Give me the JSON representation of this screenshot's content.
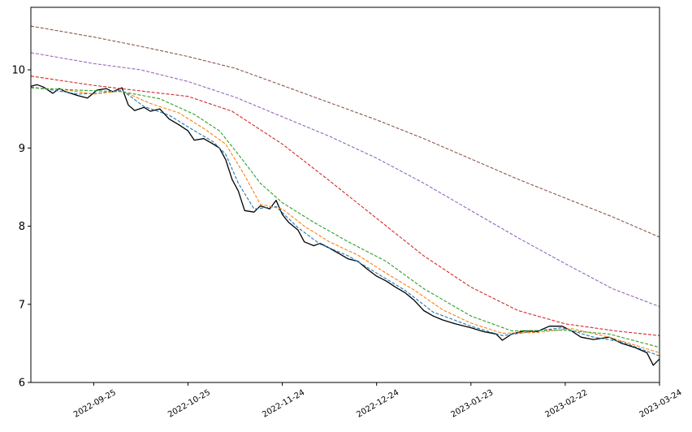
{
  "chart_data": {
    "type": "line",
    "title": "",
    "xlabel": "",
    "ylabel": "",
    "x_range": [
      "2022-09-05",
      "2023-03-24"
    ],
    "ylim": [
      6,
      10.8
    ],
    "grid": false,
    "legend": "none",
    "x_ticks": [
      "2022-09-25",
      "2022-10-25",
      "2022-11-24",
      "2022-12-24",
      "2023-01-23",
      "2023-02-22",
      "2023-03-24"
    ],
    "y_ticks": [
      "6",
      "7",
      "8",
      "9",
      "10"
    ],
    "series": [
      {
        "style": "solid",
        "color": "#000000",
        "points": [
          [
            "2022-09-05",
            9.79
          ],
          [
            "2022-09-07",
            9.81
          ],
          [
            "2022-09-09",
            9.78
          ],
          [
            "2022-09-12",
            9.7
          ],
          [
            "2022-09-14",
            9.76
          ],
          [
            "2022-09-16",
            9.72
          ],
          [
            "2022-09-20",
            9.67
          ],
          [
            "2022-09-23",
            9.64
          ],
          [
            "2022-09-26",
            9.74
          ],
          [
            "2022-09-29",
            9.76
          ],
          [
            "2022-10-01",
            9.72
          ],
          [
            "2022-10-04",
            9.77
          ],
          [
            "2022-10-06",
            9.55
          ],
          [
            "2022-10-08",
            9.48
          ],
          [
            "2022-10-11",
            9.52
          ],
          [
            "2022-10-13",
            9.47
          ],
          [
            "2022-10-16",
            9.5
          ],
          [
            "2022-10-19",
            9.37
          ],
          [
            "2022-10-22",
            9.3
          ],
          [
            "2022-10-25",
            9.22
          ],
          [
            "2022-10-27",
            9.1
          ],
          [
            "2022-10-30",
            9.12
          ],
          [
            "2022-11-02",
            9.05
          ],
          [
            "2022-11-04",
            9.0
          ],
          [
            "2022-11-06",
            8.85
          ],
          [
            "2022-11-08",
            8.6
          ],
          [
            "2022-11-10",
            8.45
          ],
          [
            "2022-11-12",
            8.2
          ],
          [
            "2022-11-15",
            8.18
          ],
          [
            "2022-11-17",
            8.26
          ],
          [
            "2022-11-20",
            8.22
          ],
          [
            "2022-11-22",
            8.33
          ],
          [
            "2022-11-24",
            8.15
          ],
          [
            "2022-11-26",
            8.05
          ],
          [
            "2022-11-29",
            7.95
          ],
          [
            "2022-12-01",
            7.8
          ],
          [
            "2022-12-04",
            7.75
          ],
          [
            "2022-12-06",
            7.78
          ],
          [
            "2022-12-09",
            7.72
          ],
          [
            "2022-12-12",
            7.65
          ],
          [
            "2022-12-15",
            7.58
          ],
          [
            "2022-12-18",
            7.55
          ],
          [
            "2022-12-21",
            7.45
          ],
          [
            "2022-12-24",
            7.36
          ],
          [
            "2022-12-27",
            7.3
          ],
          [
            "2022-12-30",
            7.22
          ],
          [
            "2023-01-02",
            7.15
          ],
          [
            "2023-01-05",
            7.05
          ],
          [
            "2023-01-08",
            6.92
          ],
          [
            "2023-01-11",
            6.85
          ],
          [
            "2023-01-14",
            6.8
          ],
          [
            "2023-01-18",
            6.75
          ],
          [
            "2023-01-23",
            6.7
          ],
          [
            "2023-01-27",
            6.65
          ],
          [
            "2023-01-31",
            6.62
          ],
          [
            "2023-02-02",
            6.54
          ],
          [
            "2023-02-05",
            6.62
          ],
          [
            "2023-02-09",
            6.66
          ],
          [
            "2023-02-13",
            6.65
          ],
          [
            "2023-02-17",
            6.72
          ],
          [
            "2023-02-21",
            6.72
          ],
          [
            "2023-02-24",
            6.66
          ],
          [
            "2023-02-27",
            6.58
          ],
          [
            "2023-03-03",
            6.55
          ],
          [
            "2023-03-08",
            6.58
          ],
          [
            "2023-03-12",
            6.5
          ],
          [
            "2023-03-16",
            6.45
          ],
          [
            "2023-03-20",
            6.38
          ],
          [
            "2023-03-22",
            6.22
          ],
          [
            "2023-03-24",
            6.3
          ]
        ]
      },
      {
        "style": "dashed",
        "color": "#1f77b4",
        "points": [
          [
            "2022-09-05",
            9.78
          ],
          [
            "2022-09-12",
            9.74
          ],
          [
            "2022-09-20",
            9.69
          ],
          [
            "2022-09-26",
            9.7
          ],
          [
            "2022-10-04",
            9.74
          ],
          [
            "2022-10-11",
            9.53
          ],
          [
            "2022-10-19",
            9.42
          ],
          [
            "2022-10-25",
            9.27
          ],
          [
            "2022-11-02",
            9.08
          ],
          [
            "2022-11-06",
            8.92
          ],
          [
            "2022-11-10",
            8.55
          ],
          [
            "2022-11-15",
            8.22
          ],
          [
            "2022-11-22",
            8.25
          ],
          [
            "2022-11-29",
            7.98
          ],
          [
            "2022-12-06",
            7.77
          ],
          [
            "2022-12-15",
            7.62
          ],
          [
            "2022-12-24",
            7.4
          ],
          [
            "2023-01-02",
            7.18
          ],
          [
            "2023-01-11",
            6.9
          ],
          [
            "2023-01-23",
            6.72
          ],
          [
            "2023-02-02",
            6.6
          ],
          [
            "2023-02-13",
            6.66
          ],
          [
            "2023-02-21",
            6.7
          ],
          [
            "2023-03-03",
            6.58
          ],
          [
            "2023-03-12",
            6.52
          ],
          [
            "2023-03-24",
            6.34
          ]
        ]
      },
      {
        "style": "dashed",
        "color": "#ff7f0e",
        "points": [
          [
            "2022-09-05",
            9.77
          ],
          [
            "2022-09-15",
            9.75
          ],
          [
            "2022-09-25",
            9.69
          ],
          [
            "2022-10-04",
            9.73
          ],
          [
            "2022-10-13",
            9.57
          ],
          [
            "2022-10-22",
            9.45
          ],
          [
            "2022-10-30",
            9.25
          ],
          [
            "2022-11-06",
            9.05
          ],
          [
            "2022-11-12",
            8.65
          ],
          [
            "2022-11-17",
            8.28
          ],
          [
            "2022-11-24",
            8.22
          ],
          [
            "2022-12-01",
            8.0
          ],
          [
            "2022-12-09",
            7.8
          ],
          [
            "2022-12-18",
            7.63
          ],
          [
            "2022-12-27",
            7.4
          ],
          [
            "2023-01-05",
            7.18
          ],
          [
            "2023-01-14",
            6.93
          ],
          [
            "2023-01-23",
            6.76
          ],
          [
            "2023-02-02",
            6.63
          ],
          [
            "2023-02-13",
            6.64
          ],
          [
            "2023-02-24",
            6.69
          ],
          [
            "2023-03-08",
            6.58
          ],
          [
            "2023-03-24",
            6.38
          ]
        ]
      },
      {
        "style": "dashed",
        "color": "#2ca02c",
        "points": [
          [
            "2022-09-05",
            9.77
          ],
          [
            "2022-09-20",
            9.74
          ],
          [
            "2022-10-04",
            9.72
          ],
          [
            "2022-10-16",
            9.63
          ],
          [
            "2022-10-27",
            9.43
          ],
          [
            "2022-11-04",
            9.22
          ],
          [
            "2022-11-10",
            8.92
          ],
          [
            "2022-11-17",
            8.55
          ],
          [
            "2022-11-24",
            8.3
          ],
          [
            "2022-12-04",
            8.05
          ],
          [
            "2022-12-15",
            7.8
          ],
          [
            "2022-12-27",
            7.55
          ],
          [
            "2023-01-08",
            7.2
          ],
          [
            "2023-01-23",
            6.85
          ],
          [
            "2023-02-05",
            6.66
          ],
          [
            "2023-02-21",
            6.67
          ],
          [
            "2023-03-08",
            6.62
          ],
          [
            "2023-03-24",
            6.45
          ]
        ]
      },
      {
        "style": "dashed",
        "color": "#d62728",
        "points": [
          [
            "2022-09-05",
            9.92
          ],
          [
            "2022-09-25",
            9.8
          ],
          [
            "2022-10-10",
            9.73
          ],
          [
            "2022-10-25",
            9.66
          ],
          [
            "2022-11-08",
            9.47
          ],
          [
            "2022-11-24",
            9.05
          ],
          [
            "2022-12-10",
            8.55
          ],
          [
            "2022-12-24",
            8.1
          ],
          [
            "2023-01-08",
            7.62
          ],
          [
            "2023-01-23",
            7.22
          ],
          [
            "2023-02-07",
            6.92
          ],
          [
            "2023-02-22",
            6.75
          ],
          [
            "2023-03-10",
            6.66
          ],
          [
            "2023-03-24",
            6.6
          ]
        ]
      },
      {
        "style": "dashed",
        "color": "#9467bd",
        "points": [
          [
            "2022-09-05",
            10.22
          ],
          [
            "2022-09-25",
            10.08
          ],
          [
            "2022-10-10",
            10.0
          ],
          [
            "2022-10-25",
            9.85
          ],
          [
            "2022-11-09",
            9.65
          ],
          [
            "2022-11-24",
            9.4
          ],
          [
            "2022-12-09",
            9.15
          ],
          [
            "2022-12-24",
            8.87
          ],
          [
            "2023-01-08",
            8.55
          ],
          [
            "2023-01-23",
            8.2
          ],
          [
            "2023-02-07",
            7.85
          ],
          [
            "2023-02-22",
            7.52
          ],
          [
            "2023-03-09",
            7.2
          ],
          [
            "2023-03-24",
            6.97
          ]
        ]
      },
      {
        "style": "dashed",
        "color": "#8c564b",
        "points": [
          [
            "2022-09-05",
            10.56
          ],
          [
            "2022-09-25",
            10.42
          ],
          [
            "2022-10-10",
            10.3
          ],
          [
            "2022-10-25",
            10.17
          ],
          [
            "2022-11-09",
            10.02
          ],
          [
            "2022-11-24",
            9.8
          ],
          [
            "2022-12-09",
            9.58
          ],
          [
            "2022-12-24",
            9.36
          ],
          [
            "2023-01-08",
            9.12
          ],
          [
            "2023-01-23",
            8.86
          ],
          [
            "2023-02-07",
            8.6
          ],
          [
            "2023-02-22",
            8.36
          ],
          [
            "2023-03-09",
            8.12
          ],
          [
            "2023-03-24",
            7.86
          ]
        ]
      }
    ]
  }
}
